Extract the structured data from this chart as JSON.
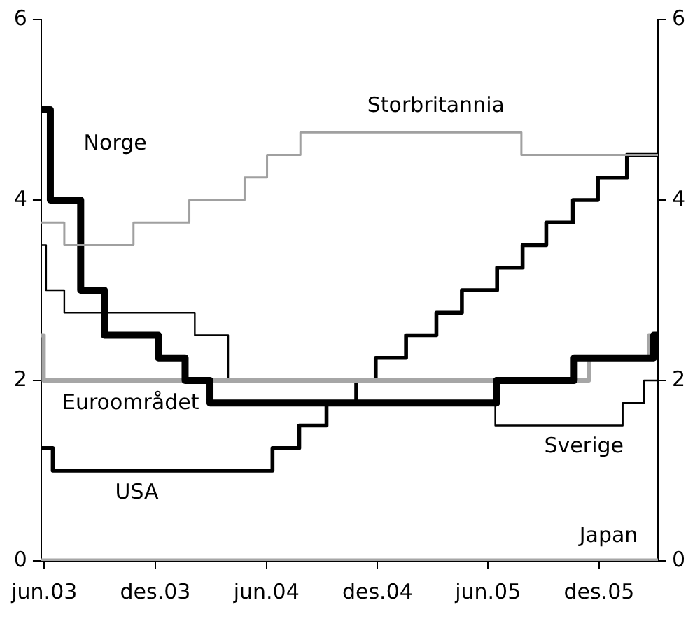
{
  "chart_data": {
    "type": "step",
    "series": [
      {
        "name": "Storbritannia",
        "color": "#a0a0a0",
        "x": [
          "2003-06-10",
          "2003-07-18",
          "2003-11-09",
          "2004-02-09",
          "2004-05-10",
          "2004-06-16",
          "2004-08-10",
          "2005-08-09",
          "2006-03-22"
        ],
        "values": [
          3.75,
          3.5,
          3.75,
          4.0,
          4.25,
          4.5,
          4.75,
          4.5,
          4.5
        ]
      },
      {
        "name": "Norge",
        "color": "#000000",
        "x": [
          "2003-06-10",
          "2003-06-25",
          "2003-08-14",
          "2003-09-22",
          "2003-12-20",
          "2004-02-02",
          "2004-03-14",
          "2005-06-29",
          "2005-11-04",
          "2006-03-15",
          "2006-03-22"
        ],
        "values": [
          5,
          4,
          3,
          2.5,
          2.25,
          2,
          1.75,
          2,
          2.25,
          2.5,
          2.5
        ]
      },
      {
        "name": "Euroområdet",
        "color": "#a6a6a6",
        "x": [
          "2003-06-10",
          "2003-06-14",
          "2005-11-28",
          "2006-03-07",
          "2006-03-22"
        ],
        "values": [
          2.5,
          2,
          2.25,
          2.5,
          2.5
        ]
      },
      {
        "name": "Sverige",
        "color": "#000000",
        "x": [
          "2003-06-10",
          "2003-06-18",
          "2003-07-18",
          "2004-02-18",
          "2004-04-13",
          "2005-06-27",
          "2006-01-23",
          "2006-02-27",
          "2006-03-22"
        ],
        "values": [
          3.5,
          3,
          2.75,
          2.5,
          2,
          1.5,
          1.75,
          2,
          2
        ]
      },
      {
        "name": "USA",
        "color": "#000000",
        "x": [
          "2003-06-10",
          "2003-06-29",
          "2004-06-25",
          "2004-08-08",
          "2004-09-22",
          "2004-11-10",
          "2004-12-12",
          "2005-01-31",
          "2005-03-22",
          "2005-05-03",
          "2005-06-30",
          "2005-08-11",
          "2005-09-19",
          "2005-11-02",
          "2005-12-13",
          "2006-01-30",
          "2006-03-22"
        ],
        "values": [
          1.25,
          1,
          1.25,
          1.5,
          1.75,
          2,
          2.25,
          2.5,
          2.75,
          3,
          3.25,
          3.5,
          3.75,
          4,
          4.25,
          4.5,
          4.5
        ]
      },
      {
        "name": "Japan",
        "color": "#a6a6a6",
        "x": [
          "2003-06-10",
          "2006-03-22"
        ],
        "values": [
          0,
          0
        ]
      }
    ],
    "xlim": [
      "2003-06-10",
      "2006-03-22"
    ],
    "xticks": [
      {
        "value": "2003-06-15",
        "label": "jun.03"
      },
      {
        "value": "2003-12-15",
        "label": "des.03"
      },
      {
        "value": "2004-06-15",
        "label": "jun.04"
      },
      {
        "value": "2004-12-15",
        "label": "des.04"
      },
      {
        "value": "2005-06-15",
        "label": "jun.05"
      },
      {
        "value": "2005-12-15",
        "label": "des.05"
      }
    ],
    "ylim": [
      0,
      6
    ],
    "yticks": [
      0,
      2,
      4,
      6
    ],
    "y2lim": [
      0,
      6
    ],
    "y2ticks": [
      0,
      2,
      4,
      6
    ],
    "grid": false,
    "legend": false,
    "marker": "none",
    "line_style": "solid"
  }
}
